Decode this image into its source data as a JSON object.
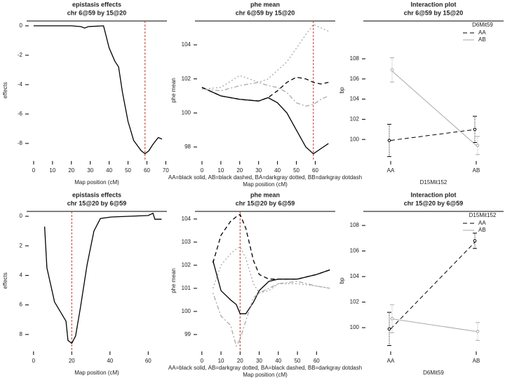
{
  "chart_data": [
    {
      "type": "line",
      "title": "epistasis effects",
      "subtitle": "chr 6@59 by 15@20",
      "xlabel": "Map position (cM)",
      "ylabel": "effects",
      "xlim": [
        -3.7,
        70.6
      ],
      "ylim": [
        -9.1,
        0.33
      ],
      "xticks": [
        0,
        10,
        20,
        30,
        40,
        50,
        60,
        70
      ],
      "yticks": [
        0,
        -2,
        -4,
        -6,
        -8
      ],
      "vline": 59,
      "vline_color": "#c0392b",
      "color": "#000000",
      "x": [
        0,
        10,
        20,
        25,
        27,
        29,
        37,
        40,
        43,
        45,
        47,
        50,
        53,
        57,
        59,
        61,
        63,
        66,
        68
      ],
      "values": [
        0,
        0,
        0,
        -0.05,
        -0.15,
        -0.05,
        0,
        -1.5,
        -2.4,
        -2.8,
        -4.5,
        -6.5,
        -7.8,
        -8.5,
        -8.7,
        -8.5,
        -8.1,
        -7.6,
        -7.7
      ]
    },
    {
      "type": "multiline",
      "title": "phe mean",
      "subtitle": "chr 6@59 by 15@20",
      "xlabel": "Map position (cM)",
      "ylabel": "phe mean",
      "line_key": "AA=black solid, AB=black dashed, BA=darkgray dotted, BB=darkgray dotdash",
      "xlim": [
        -3.7,
        70.6
      ],
      "ylim": [
        97.26,
        105.4
      ],
      "xticks": [
        0,
        10,
        20,
        30,
        40,
        50,
        60
      ],
      "yticks": [
        98,
        100,
        102,
        104
      ],
      "vline": 59,
      "vline_color": "#c0392b",
      "x": [
        0,
        10,
        20,
        30,
        35,
        40,
        45,
        50,
        55,
        59,
        63,
        67
      ],
      "series": [
        {
          "name": "AA",
          "color": "#000000",
          "dash": "solid",
          "values": [
            101.5,
            101.0,
            100.8,
            100.7,
            100.9,
            100.6,
            100.0,
            99.0,
            98.0,
            97.6,
            97.9,
            98.2
          ]
        },
        {
          "name": "AB",
          "color": "#000000",
          "dash": "dashed",
          "values": [
            101.5,
            101.0,
            100.8,
            100.7,
            100.9,
            101.3,
            101.8,
            102.1,
            102.0,
            101.8,
            101.7,
            101.8
          ]
        },
        {
          "name": "BA",
          "color": "#a9a9a9",
          "dash": "dotted",
          "values": [
            101.4,
            101.5,
            102.2,
            101.8,
            102.0,
            102.5,
            103.0,
            103.8,
            104.6,
            105.2,
            105.0,
            104.8
          ]
        },
        {
          "name": "BB",
          "color": "#a9a9a9",
          "dash": "dotdash",
          "values": [
            101.4,
            101.3,
            101.6,
            101.8,
            101.6,
            101.5,
            101.2,
            100.6,
            100.4,
            100.5,
            100.8,
            101.0
          ]
        }
      ]
    },
    {
      "type": "interaction",
      "title": "Interaction plot",
      "subtitle": "chr 6@59 by 15@20",
      "xlabel": "D15Mit152",
      "ylabel": "bp",
      "categories": [
        "AA",
        "AB"
      ],
      "ylim": [
        98,
        111.75
      ],
      "yticks": [
        100,
        102,
        104,
        106,
        108
      ],
      "legend_title": "D6Mit59",
      "legend": "topright",
      "series": [
        {
          "name": "AA",
          "color": "#000000",
          "dash": "dashed",
          "values": [
            99.9,
            101.0
          ],
          "errors": [
            1.6,
            1.3
          ]
        },
        {
          "name": "AB",
          "color": "#a9a9a9",
          "dash": "solid",
          "values": [
            106.9,
            99.4
          ],
          "errors": [
            1.2,
            0.9
          ]
        }
      ]
    },
    {
      "type": "line",
      "title": "epistasis effects",
      "subtitle": "chr 15@20 by 6@59",
      "xlabel": "Map position (cM)",
      "ylabel": "effects",
      "xlim": [
        -3.6,
        69.8
      ],
      "ylim": [
        9.05,
        -0.33
      ],
      "xticks": [
        0,
        20,
        40,
        60
      ],
      "yticks": [
        0,
        2,
        4,
        6,
        8
      ],
      "vline": 20,
      "vline_color": "#c0392b",
      "color": "#000000",
      "x": [
        5.8,
        7,
        11,
        17,
        18,
        20,
        22,
        24.5,
        28,
        31.6,
        35,
        40.7,
        60,
        62.5,
        63.5,
        67
      ],
      "values": [
        0.7,
        3.5,
        5.8,
        7.1,
        8.4,
        8.6,
        8.1,
        6.2,
        3.3,
        1.0,
        0.15,
        0.05,
        -0.05,
        -0.2,
        0.2,
        0.2
      ]
    },
    {
      "type": "multiline",
      "title": "phe mean",
      "subtitle": "chr 15@20 by 6@59",
      "xlabel": "Map position (cM)",
      "ylabel": "phe mean",
      "line_key": "AA=black solid, AB=darkgray dotted, BA=black dashed, BB=darkgray dotdash",
      "xlim": [
        -3.6,
        69.8
      ],
      "ylim": [
        98.33,
        104.33
      ],
      "xticks": [
        0,
        10,
        20,
        30,
        40,
        50,
        60
      ],
      "yticks": [
        99,
        100,
        101,
        102,
        103,
        104
      ],
      "vline": 20,
      "vline_color": "#c0392b",
      "x": [
        5.8,
        10,
        15,
        18,
        20,
        23,
        27,
        30,
        35,
        40,
        50,
        60,
        67
      ],
      "series": [
        {
          "name": "AA",
          "color": "#000000",
          "dash": "solid",
          "values": [
            102.2,
            100.9,
            100.5,
            100.3,
            99.9,
            99.9,
            100.4,
            100.9,
            101.3,
            101.4,
            101.4,
            101.6,
            101.8
          ]
        },
        {
          "name": "AB",
          "color": "#a9a9a9",
          "dash": "dotted",
          "values": [
            101.0,
            102.0,
            102.5,
            102.7,
            102.8,
            102.3,
            101.2,
            100.8,
            100.9,
            101.2,
            101.2,
            101.1,
            101.0
          ]
        },
        {
          "name": "BA",
          "color": "#000000",
          "dash": "dashed",
          "values": [
            102.1,
            103.3,
            103.9,
            104.1,
            104.2,
            103.6,
            102.2,
            101.6,
            101.4,
            101.4,
            101.4,
            101.6,
            101.8
          ]
        },
        {
          "name": "BB",
          "color": "#a9a9a9",
          "dash": "dotdash",
          "values": [
            100.8,
            99.8,
            99.4,
            98.5,
            98.8,
            99.6,
            100.6,
            100.8,
            101.0,
            101.2,
            101.3,
            101.1,
            101.0
          ]
        }
      ]
    },
    {
      "type": "interaction",
      "title": "Interaction plot",
      "subtitle": "chr 15@20 by 6@59",
      "xlabel": "D6Mit59",
      "ylabel": "bp",
      "categories": [
        "AA",
        "AB"
      ],
      "ylim": [
        98.25,
        109.1
      ],
      "yticks": [
        100,
        102,
        104,
        106,
        108
      ],
      "legend_title": "D15Mit152",
      "legend": "topright",
      "series": [
        {
          "name": "AA",
          "color": "#000000",
          "dash": "dashed",
          "values": [
            99.9,
            106.8
          ],
          "errors": [
            1.3,
            0.6
          ]
        },
        {
          "name": "AB",
          "color": "#a9a9a9",
          "dash": "solid",
          "values": [
            100.7,
            99.7
          ],
          "errors": [
            1.1,
            0.7
          ]
        }
      ]
    }
  ]
}
